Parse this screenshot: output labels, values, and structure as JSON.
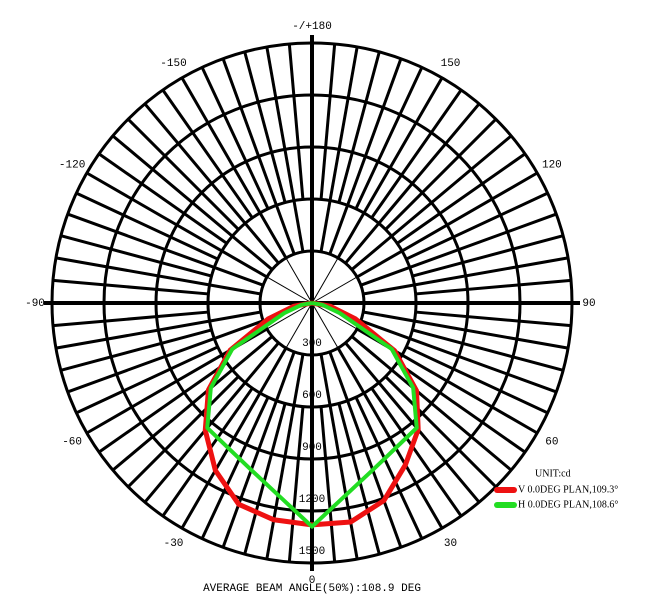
{
  "chart_data": {
    "type": "polar",
    "footer": "AVERAGE BEAM ANGLE(50%):108.9 DEG",
    "unit_label": "UNIT:cd",
    "x": [
      -90,
      -80,
      -70,
      -60,
      -50,
      -40,
      -30,
      -20,
      -10,
      0,
      10,
      20,
      30,
      40,
      50,
      60,
      70,
      80,
      90
    ],
    "series": [
      {
        "name": "V 0.0DEG PLAN,109.3°",
        "color": "#ee1111",
        "values": [
          0,
          105,
          270,
          545,
          780,
          958,
          1115,
          1236,
          1270,
          1280,
          1283,
          1213,
          1078,
          953,
          787,
          550,
          265,
          105,
          0
        ]
      },
      {
        "name": "H 0.0DEG PLAN,108.6°",
        "color": "#22dd22",
        "values": [
          0,
          60,
          170,
          531,
          762,
          940,
          966,
          1025,
          1125,
          1290,
          1125,
          1025,
          966,
          940,
          762,
          531,
          170,
          60,
          0
        ]
      }
    ],
    "rlim": [
      0,
      1500
    ],
    "rticks": [
      300,
      600,
      900,
      1200,
      1500
    ],
    "angle_ticks": [
      0,
      30,
      60,
      90,
      120,
      150,
      {
        "value": 180,
        "label": "-/+180"
      },
      -150,
      -120,
      -90,
      -60,
      -30
    ]
  }
}
